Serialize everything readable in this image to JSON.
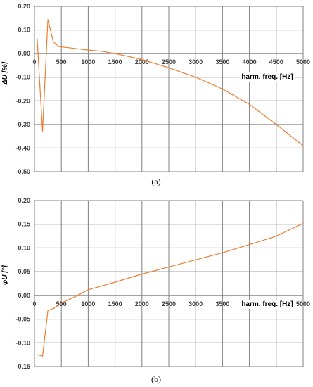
{
  "chart_data": [
    {
      "type": "line",
      "caption": "(a)",
      "ylabel": "ΔU [%]",
      "xlabel": "harm. freq. [Hz]",
      "xlim": [
        0,
        5000
      ],
      "ylim": [
        -0.5,
        0.2
      ],
      "x_ticks": [
        0,
        500,
        1000,
        1500,
        2000,
        2500,
        3000,
        3500,
        4000,
        4500,
        5000
      ],
      "y_ticks": [
        0.2,
        0.1,
        0.0,
        -0.1,
        -0.2,
        -0.3,
        -0.4,
        -0.5
      ],
      "y_tick_labels": [
        "0.20",
        "0.10",
        "0.00",
        "-0.10",
        "-0.20",
        "-0.30",
        "-0.40",
        "-0.50"
      ],
      "grid": true,
      "color": "#ED7D31",
      "x": [
        50,
        150,
        250,
        350,
        450,
        750,
        1000,
        1250,
        1500,
        2000,
        2500,
        3000,
        3500,
        4000,
        4500,
        5000
      ],
      "y": [
        0.065,
        -0.33,
        0.145,
        0.05,
        0.03,
        0.022,
        0.015,
        0.01,
        0.0,
        -0.025,
        -0.06,
        -0.1,
        -0.15,
        -0.215,
        -0.3,
        -0.39
      ]
    },
    {
      "type": "line",
      "caption": "(b)",
      "ylabel": "φU [°]",
      "xlabel": "harm. freq. [Hz]",
      "xlim": [
        0,
        5000
      ],
      "ylim": [
        -0.15,
        0.2
      ],
      "x_ticks": [
        0,
        500,
        1000,
        1500,
        2000,
        2500,
        3000,
        3500,
        4000,
        4500,
        5000
      ],
      "y_ticks": [
        0.2,
        0.15,
        0.1,
        0.05,
        0.0,
        -0.05,
        -0.1,
        -0.15
      ],
      "y_tick_labels": [
        "0.20",
        "0.15",
        "0.10",
        "0.05",
        "0.00",
        "-0.05",
        "-0.10",
        "-0.15"
      ],
      "grid": true,
      "color": "#ED7D31",
      "x": [
        50,
        150,
        250,
        350,
        500,
        750,
        1000,
        1250,
        1500,
        2000,
        2500,
        3000,
        3500,
        4000,
        4500,
        5000
      ],
      "y": [
        -0.125,
        -0.128,
        -0.032,
        -0.028,
        -0.016,
        -0.003,
        0.012,
        0.02,
        0.028,
        0.045,
        0.06,
        0.075,
        0.09,
        0.107,
        0.125,
        0.152
      ]
    }
  ]
}
